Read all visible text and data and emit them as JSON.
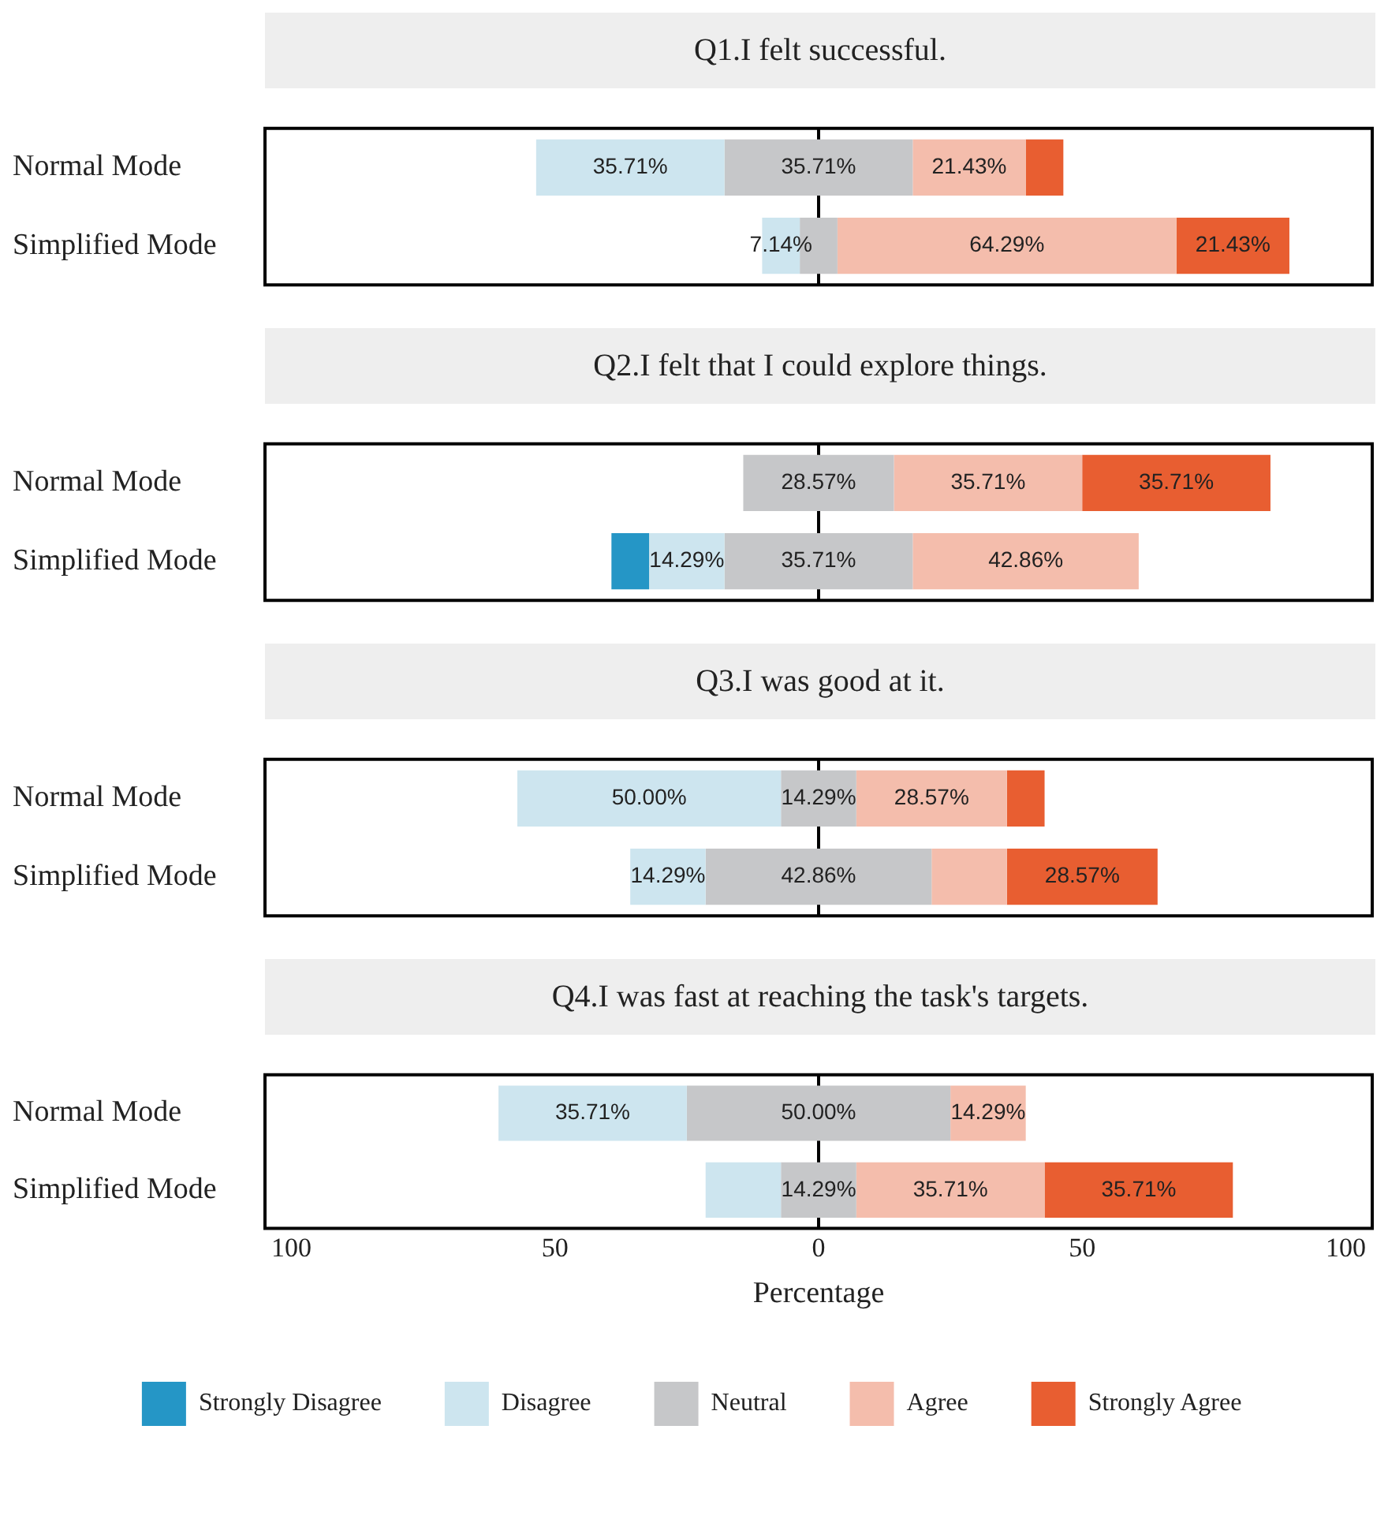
{
  "chart_data": [
    {
      "type": "bar",
      "orientation": "horizontal",
      "title": "Q1.I felt successful.",
      "categories": [
        "Normal Mode",
        "Simplified Mode"
      ],
      "xlim": [
        -105,
        105
      ],
      "tick_labels": "y",
      "grid": false,
      "legend": false,
      "ref_lines": [
        {
          "axis": "x",
          "value": 0,
          "color": "#000000",
          "line_style": "solid"
        }
      ],
      "series": [
        {
          "color": "#cde5ef",
          "base": [
            -53.57,
            -10.71
          ],
          "values": [
            35.71,
            7.14
          ],
          "value_labels": [
            "35.71%",
            "7.14%"
          ]
        },
        {
          "color": "#c6c7c9",
          "base": [
            -17.86,
            -3.57
          ],
          "values": [
            35.71,
            7.14
          ],
          "value_labels": [
            "35.71%",
            null
          ]
        },
        {
          "color": "#f4bdac",
          "base": [
            17.85,
            3.57
          ],
          "values": [
            21.43,
            64.29
          ],
          "value_labels": [
            "21.43%",
            "64.29%"
          ]
        },
        {
          "color": "#e85e31",
          "base": [
            39.28,
            67.86
          ],
          "values": [
            7.14,
            21.43
          ],
          "value_labels": [
            null,
            "21.43%"
          ]
        }
      ]
    },
    {
      "type": "bar",
      "orientation": "horizontal",
      "title": "Q2.I felt that I could explore things.",
      "categories": [
        "Normal Mode",
        "Simplified Mode"
      ],
      "xlim": [
        -105,
        105
      ],
      "tick_labels": "y",
      "grid": false,
      "legend": false,
      "ref_lines": [
        {
          "axis": "x",
          "value": 0,
          "color": "#000000",
          "line_style": "solid"
        }
      ],
      "series": [
        {
          "color": "#2596c6",
          "base": [
            null,
            -39.29
          ],
          "values": [
            null,
            7.14
          ],
          "value_labels": [
            null,
            null
          ]
        },
        {
          "color": "#cde5ef",
          "base": [
            null,
            -32.15
          ],
          "values": [
            null,
            14.29
          ],
          "value_labels": [
            null,
            "14.29%"
          ]
        },
        {
          "color": "#c6c7c9",
          "base": [
            -14.29,
            -17.86
          ],
          "values": [
            28.57,
            35.71
          ],
          "value_labels": [
            "28.57%",
            "35.71%"
          ]
        },
        {
          "color": "#f4bdac",
          "base": [
            14.28,
            17.85
          ],
          "values": [
            35.71,
            42.86
          ],
          "value_labels": [
            "35.71%",
            "42.86%"
          ]
        },
        {
          "color": "#e85e31",
          "base": [
            49.99,
            null
          ],
          "values": [
            35.71,
            null
          ],
          "value_labels": [
            "35.71%",
            null
          ]
        }
      ]
    },
    {
      "type": "bar",
      "orientation": "horizontal",
      "title": "Q3.I was good at it.",
      "categories": [
        "Normal Mode",
        "Simplified Mode"
      ],
      "xlim": [
        -105,
        105
      ],
      "tick_labels": "y",
      "grid": false,
      "legend": false,
      "ref_lines": [
        {
          "axis": "x",
          "value": 0,
          "color": "#000000",
          "line_style": "solid"
        }
      ],
      "series": [
        {
          "color": "#cde5ef",
          "base": [
            -57.14,
            -35.72
          ],
          "values": [
            50,
            14.29
          ],
          "value_labels": [
            "50.00%",
            "14.29%"
          ]
        },
        {
          "color": "#c6c7c9",
          "base": [
            -7.14,
            -21.43
          ],
          "values": [
            14.29,
            42.86
          ],
          "value_labels": [
            "14.29%",
            "42.86%"
          ]
        },
        {
          "color": "#f4bdac",
          "base": [
            7.15,
            21.43
          ],
          "values": [
            28.57,
            14.29
          ],
          "value_labels": [
            "28.57%",
            null
          ]
        },
        {
          "color": "#e85e31",
          "base": [
            35.72,
            35.72
          ],
          "values": [
            7.14,
            28.57
          ],
          "value_labels": [
            null,
            "28.57%"
          ]
        }
      ]
    },
    {
      "type": "bar",
      "orientation": "horizontal",
      "title": "Q4.I was fast at reaching the task's targets.",
      "xlabel": "Percentage",
      "categories": [
        "Normal Mode",
        "Simplified Mode"
      ],
      "xlim": [
        -105,
        105
      ],
      "xticks": [
        {
          "value": -100,
          "label": "100"
        },
        {
          "value": -50,
          "label": "50"
        },
        0,
        50,
        100
      ],
      "grid": false,
      "legend": "bottom",
      "ref_lines": [
        {
          "axis": "x",
          "value": 0,
          "color": "#000000",
          "line_style": "solid"
        }
      ],
      "series": [
        {
          "name": "Strongly Disagree",
          "color": "#2596c6",
          "base": [
            null,
            null
          ],
          "values": [
            null,
            null
          ],
          "value_labels": [
            null,
            null
          ]
        },
        {
          "name": "Disagree",
          "color": "#cde5ef",
          "base": [
            -60.71,
            -21.43
          ],
          "values": [
            35.71,
            14.29
          ],
          "value_labels": [
            "35.71%",
            null
          ]
        },
        {
          "name": "Neutral",
          "color": "#c6c7c9",
          "base": [
            -25,
            -7.14
          ],
          "values": [
            50,
            14.29
          ],
          "value_labels": [
            "50.00%",
            "14.29%"
          ]
        },
        {
          "name": "Agree",
          "color": "#f4bdac",
          "base": [
            25,
            7.15
          ],
          "values": [
            14.29,
            35.71
          ],
          "value_labels": [
            "14.29%",
            "35.71%"
          ]
        },
        {
          "name": "Strongly Agree",
          "color": "#e85e31",
          "base": [
            null,
            42.86
          ],
          "values": [
            null,
            35.71
          ],
          "value_labels": [
            null,
            "35.71%"
          ]
        }
      ]
    }
  ]
}
